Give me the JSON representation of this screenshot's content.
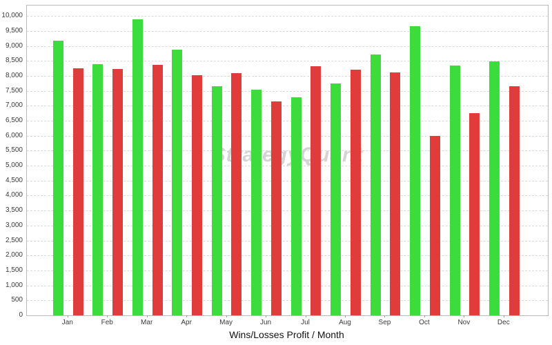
{
  "chart_data": {
    "type": "bar",
    "title": "Wins/Losses Profit / Month",
    "watermark": "StrategyQuant",
    "categories": [
      "Jan",
      "Feb",
      "Mar",
      "Apr",
      "May",
      "Jun",
      "Jul",
      "Aug",
      "Sep",
      "Oct",
      "Nov",
      "Dec"
    ],
    "series": [
      {
        "name": "Wins",
        "color": "#3bdc3b",
        "values": [
          9170,
          8400,
          9880,
          8880,
          7650,
          7540,
          7290,
          7740,
          8720,
          9660,
          8350,
          8480
        ]
      },
      {
        "name": "Losses",
        "color": "#e13c3c",
        "values": [
          8260,
          8240,
          8370,
          8020,
          8080,
          7140,
          8310,
          8210,
          8110,
          6000,
          6750,
          7650
        ]
      }
    ],
    "xlabel": "",
    "ylabel": "",
    "ylim": [
      0,
      10350
    ],
    "y_tick_step": 500,
    "y_tick_label_max": 10000,
    "grid": {
      "horizontal": true,
      "style": "dashed",
      "color": "#d9d9d9"
    },
    "legend_position": "none",
    "colors": {
      "watermark_text": "#d4d4d4",
      "axis_border": "#b9b9b9",
      "tick_text": "#3a3a3a",
      "title_text": "#111111"
    }
  }
}
